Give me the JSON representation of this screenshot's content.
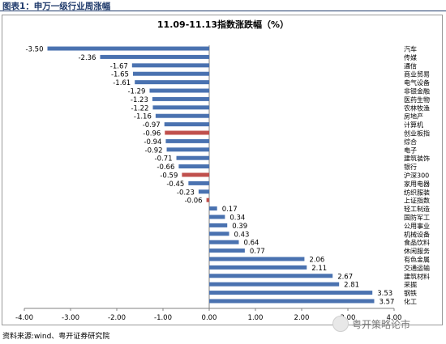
{
  "header": {
    "title": "图表1：申万一级行业周涨幅"
  },
  "source": "资料来源:wind、粤开证券研究院",
  "watermark": {
    "text": "粤开策略论市"
  },
  "colors": {
    "bar": "#4a72b0",
    "highlight": "#c0504d",
    "axis": "#808080"
  },
  "chart_data": {
    "type": "bar",
    "orientation": "horizontal",
    "title": "11.09-11.13指数涨跌幅（%）",
    "xlim": [
      -4.0,
      4.0
    ],
    "xticks": [
      "-4.00",
      "-3.00",
      "-2.00",
      "-1.00",
      "0.00",
      "1.00",
      "2.00",
      "3.00",
      "4.00"
    ],
    "grid": false,
    "legend": "none",
    "categories": [
      "汽车",
      "传媒",
      "通信",
      "商业贸易",
      "电气设备",
      "非银金融",
      "医药生物",
      "农林牧渔",
      "房地产",
      "计算机",
      "创业板指",
      "综合",
      "电子",
      "建筑装饰",
      "银行",
      "沪深300",
      "家用电器",
      "纺织服装",
      "上证指数",
      "轻工制造",
      "国防军工",
      "公用事业",
      "机械设备",
      "食品饮料",
      "休闲服务",
      "有色金属",
      "交通运输",
      "建筑材料",
      "采掘",
      "钢铁",
      "化工"
    ],
    "values": [
      -3.5,
      -2.36,
      -1.67,
      -1.65,
      -1.61,
      -1.29,
      -1.23,
      -1.22,
      -1.16,
      -0.97,
      -0.96,
      -0.94,
      -0.92,
      -0.71,
      -0.66,
      -0.59,
      -0.45,
      -0.23,
      -0.06,
      0.17,
      0.34,
      0.39,
      0.43,
      0.64,
      0.77,
      2.06,
      2.11,
      2.67,
      2.81,
      3.53,
      3.57
    ],
    "labels": [
      "-3.50",
      "-2.36",
      "-1.67",
      "-1.65",
      "-1.61",
      "-1.29",
      "-1.23",
      "-1.22",
      "-1.16",
      "-0.97",
      "-0.96",
      "-0.94",
      "-0.92",
      "-0.71",
      "-0.66",
      "-0.59",
      "-0.45",
      "-0.23",
      "-0.06",
      "0.17",
      "0.34",
      "0.39",
      "0.43",
      "0.64",
      "0.77",
      "2.06",
      "2.11",
      "2.67",
      "2.81",
      "3.53",
      "3.57"
    ],
    "highlighted": [
      "创业板指",
      "沪深300",
      "上证指数"
    ]
  }
}
